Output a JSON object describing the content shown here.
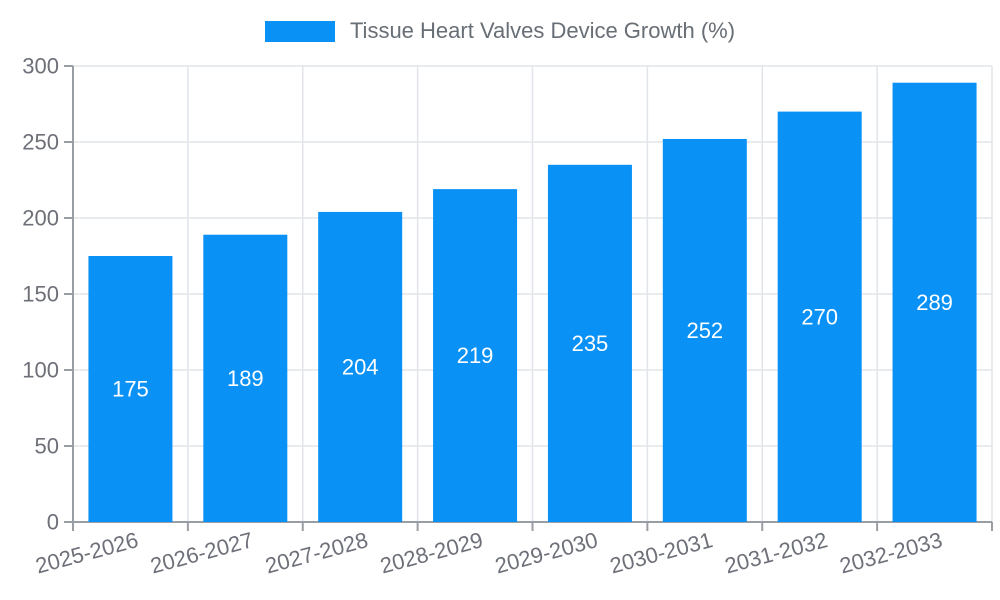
{
  "chart_data": {
    "type": "bar",
    "title": "Tissue Heart Valves Device Growth (%)",
    "categories": [
      "2025-2026",
      "2026-2027",
      "2027-2028",
      "2028-2029",
      "2029-2030",
      "2030-2031",
      "2031-2032",
      "2032-2033"
    ],
    "values": [
      175,
      189,
      204,
      219,
      235,
      252,
      270,
      289
    ],
    "xlabel": "",
    "ylabel": "",
    "ylim": [
      0,
      300
    ],
    "yticks": [
      0,
      50,
      100,
      150,
      200,
      250,
      300
    ],
    "grid": true,
    "legend_position": "top-center",
    "x_label_rotation": -15,
    "colors": {
      "bar": "#0991F5",
      "bar_value_label": "#ffffff",
      "axis_text": "#6E7079",
      "legend_text": "#676E76",
      "grid_line": "#E1E5EA",
      "axis_line": "#999EA4"
    }
  }
}
